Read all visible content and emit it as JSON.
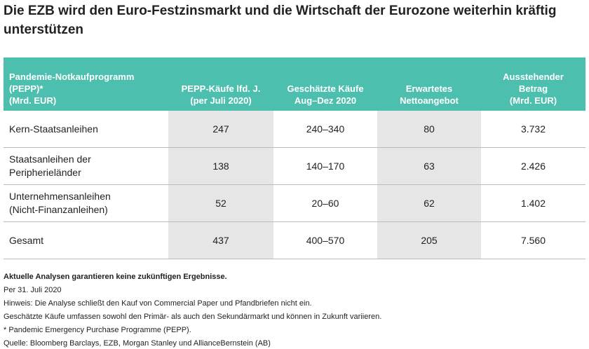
{
  "header": {
    "title": "Die EZB wird den Euro-Festzinsmarkt und die Wirtschaft der Eurozone weiterhin kräftig unterstützen"
  },
  "table": {
    "headers": [
      "Pandemie-Notkaufprogramm\n(PEPP)*\n(Mrd. EUR)",
      "PEPP-Käufe lfd. J.\n(per Juli 2020)",
      "Geschätzte Käufe\nAug–Dez 2020",
      "Erwartetes\nNettoangebot",
      "Ausstehender\nBetrag\n(Mrd. EUR)"
    ],
    "rows": [
      [
        "Kern-Staatsanleihen",
        "247",
        "240–340",
        "80",
        "3.732"
      ],
      [
        "Staatsanleihen der\nPeripherieländer",
        "138",
        "140–170",
        "63",
        "2.426"
      ],
      [
        "Unternehmensanleihen\n(Nicht-Finanzanleihen)",
        "52",
        "20–60",
        "62",
        "1.402"
      ],
      [
        "Gesamt",
        "437",
        "400–570",
        "205",
        "7.560"
      ]
    ]
  },
  "notes": {
    "disclaimer": "Aktuelle Analysen garantieren keine zukünftigen Ergebnisse.",
    "lines": [
      "Per 31. Juli 2020",
      "Hinweis: Die Analyse schließt den Kauf von Commercial Paper und Pfandbriefen nicht ein.",
      "Geschätzte Käufe umfassen sowohl den Primär- als auch den Sekundärmarkt und können in Zukunft variieren.",
      "* Pandemic Emergency Purchase Programme (PEPP).",
      "Quelle: Bloomberg Barclays, EZB, Morgan Stanley und AllianceBernstein (AB)"
    ]
  }
}
